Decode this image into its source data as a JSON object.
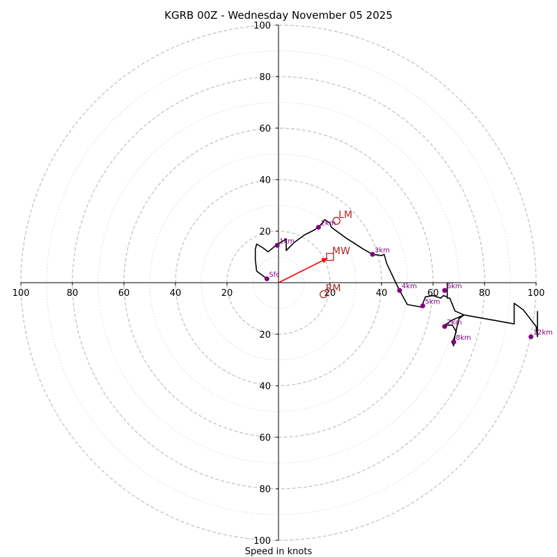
{
  "chart_data": {
    "type": "hodograph",
    "title": "KGRB 00Z - Wednesday November 05 2025",
    "xlabel": "Speed in knots",
    "units": "knots",
    "max_speed": 100,
    "ring_major": [
      20,
      40,
      60,
      80,
      100
    ],
    "ring_minor": [
      10,
      30,
      50,
      70,
      90
    ],
    "x_tick_labels": [
      "100",
      "80",
      "60",
      "40",
      "20",
      "20",
      "40",
      "60",
      "80",
      "100"
    ],
    "x_tick_values": [
      -100,
      -80,
      -60,
      -40,
      -20,
      20,
      40,
      60,
      80,
      100
    ],
    "y_tick_labels": [
      "100",
      "80",
      "60",
      "40",
      "20",
      "20",
      "40",
      "60",
      "80",
      "100"
    ],
    "y_tick_values": [
      100,
      80,
      60,
      40,
      20,
      -20,
      -40,
      -60,
      -80,
      -100
    ],
    "trace": [
      [
        -4.5,
        1.5
      ],
      [
        -8.5,
        4.5
      ],
      [
        -9,
        9
      ],
      [
        -9,
        13
      ],
      [
        -8.5,
        15
      ],
      [
        -6,
        13.5
      ],
      [
        -4,
        12
      ],
      [
        -1,
        14.5
      ],
      [
        3,
        17
      ],
      [
        3,
        12.5
      ],
      [
        6,
        15.5
      ],
      [
        10,
        18.5
      ],
      [
        14,
        20.5
      ],
      [
        16,
        22
      ],
      [
        18,
        24.5
      ],
      [
        20,
        23
      ],
      [
        20.5,
        21.5
      ],
      [
        26,
        17.5
      ],
      [
        33,
        13
      ],
      [
        36.5,
        11
      ],
      [
        40,
        10.5
      ],
      [
        41,
        11
      ],
      [
        42,
        7.5
      ],
      [
        45.5,
        0
      ],
      [
        47,
        -3
      ],
      [
        50,
        -8.5
      ],
      [
        55.5,
        -9.5
      ],
      [
        57,
        -5.5
      ],
      [
        60,
        -5
      ],
      [
        63,
        -6
      ],
      [
        64,
        -5
      ],
      [
        65.5,
        -5.5
      ],
      [
        65.5,
        0
      ],
      [
        65.5,
        -6
      ],
      [
        66.5,
        -6
      ],
      [
        68.5,
        -11
      ],
      [
        72,
        -12.5
      ],
      [
        67.5,
        -14.5
      ],
      [
        64.5,
        -16.5
      ],
      [
        67.5,
        -16.5
      ],
      [
        69,
        -19
      ],
      [
        67.5,
        -23.5
      ],
      [
        68,
        -24.5
      ],
      [
        68.5,
        -20.5
      ],
      [
        70,
        -14
      ],
      [
        72,
        -12.5
      ],
      [
        91.5,
        -16
      ],
      [
        91.5,
        -8
      ],
      [
        95,
        -10.5
      ],
      [
        100,
        -17
      ],
      [
        100.5,
        -21
      ],
      [
        100.5,
        -11
      ]
    ],
    "height_markers": [
      {
        "label": "Sfc",
        "u": -4.5,
        "v": 1.5
      },
      {
        "label": "1km",
        "u": -0.5,
        "v": 14.5
      },
      {
        "label": "2km",
        "u": 15.5,
        "v": 21.5
      },
      {
        "label": "3km",
        "u": 36.5,
        "v": 11
      },
      {
        "label": "4km",
        "u": 47,
        "v": -3
      },
      {
        "label": "5km",
        "u": 56,
        "v": -9
      },
      {
        "label": "6km",
        "u": 64.5,
        "v": -3
      },
      {
        "label": "7km",
        "u": 64.5,
        "v": -17
      },
      {
        "label": "8km",
        "u": 68,
        "v": -23
      },
      {
        "label": "12km",
        "u": 98,
        "v": -21
      }
    ],
    "storm_motion": [
      {
        "label": "LM",
        "u": 22.5,
        "v": 24,
        "marker": "circle"
      },
      {
        "label": "MW",
        "u": 20,
        "v": 10,
        "marker": "square"
      },
      {
        "label": "RM",
        "u": 17.5,
        "v": -4.5,
        "marker": "circle"
      }
    ],
    "mean_wind_vector": {
      "u": 19,
      "v": 9.5
    },
    "colors": {
      "trace": "#000000",
      "markers": "#800080",
      "storm_motion": "#b22222",
      "vector": "#ff0000",
      "rings": "#bfbfbf",
      "axes": "#000000"
    }
  }
}
